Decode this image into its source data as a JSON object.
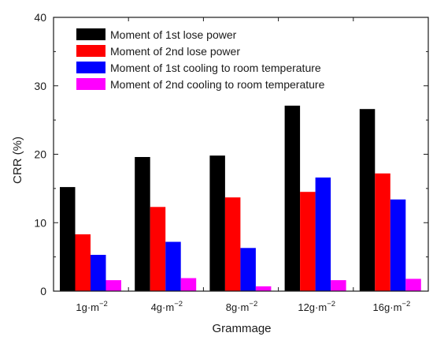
{
  "chart_data": {
    "type": "bar",
    "title": "",
    "xlabel": "Grammage",
    "ylabel": "CRR (%)",
    "ylim": [
      0,
      40
    ],
    "yticks": [
      0,
      10,
      20,
      30,
      40
    ],
    "grid": false,
    "legend_position": "top-left",
    "categories": [
      {
        "base": "1g·m",
        "exp": "−2"
      },
      {
        "base": "4g·m",
        "exp": "−2"
      },
      {
        "base": "8g·m",
        "exp": "−2"
      },
      {
        "base": "12g·m",
        "exp": "−2"
      },
      {
        "base": "16g·m",
        "exp": "−2"
      }
    ],
    "series": [
      {
        "name": "Moment of 1st lose power",
        "color": "#000000",
        "values": [
          15.2,
          19.6,
          19.8,
          27.1,
          26.6
        ]
      },
      {
        "name": "Moment of 2nd lose power",
        "color": "#ff0000",
        "values": [
          8.3,
          12.3,
          13.7,
          14.5,
          17.2
        ]
      },
      {
        "name": "Moment of 1st cooling to room temperature",
        "color": "#0000ff",
        "values": [
          5.3,
          7.2,
          6.3,
          16.6,
          13.4
        ]
      },
      {
        "name": "Moment of 2nd cooling to room temperature",
        "color": "#ff00ff",
        "values": [
          1.6,
          1.9,
          0.7,
          1.6,
          1.8
        ]
      }
    ]
  }
}
